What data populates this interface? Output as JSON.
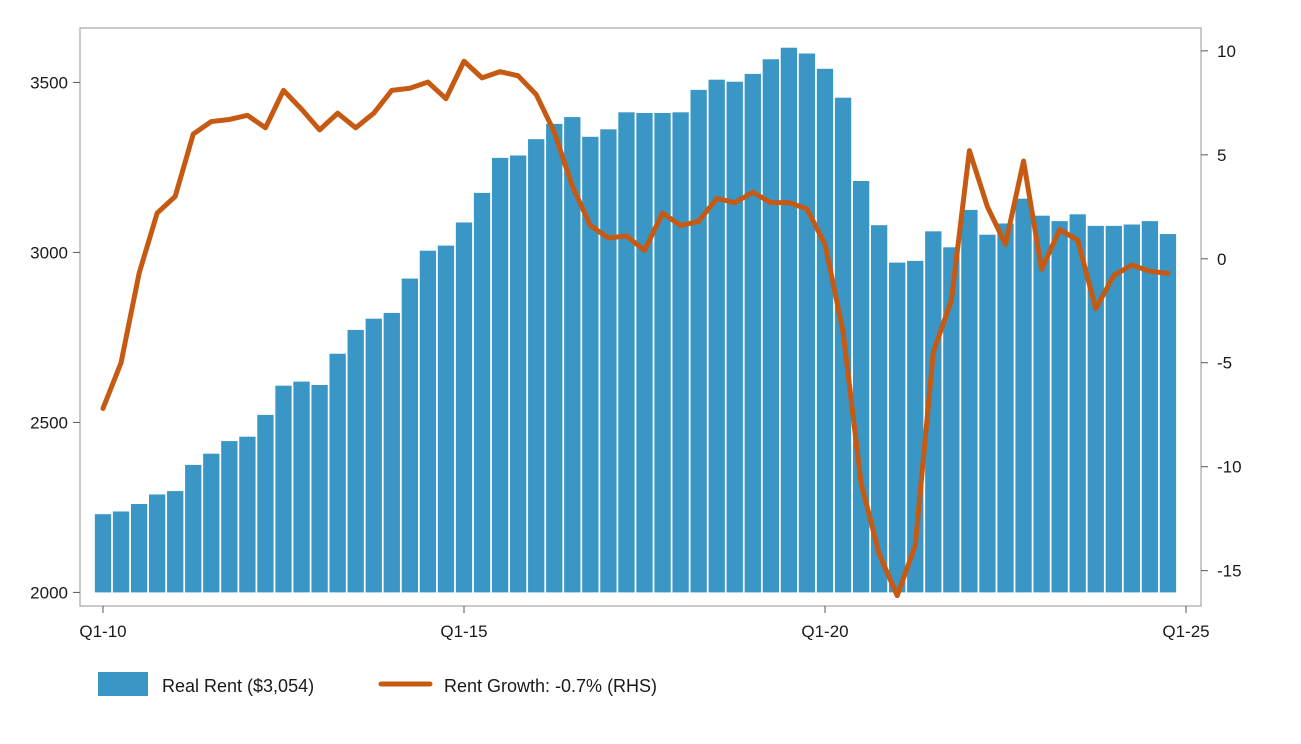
{
  "chart_data": {
    "type": "bar",
    "title": "",
    "xlabel": "",
    "ylabel": "",
    "x_ticks": [
      "Q1-10",
      "Q1-15",
      "Q1-20",
      "Q1-25"
    ],
    "ylim": [
      1960,
      3660
    ],
    "y_ticks": [
      2000,
      2500,
      3000,
      3500
    ],
    "y2lim": [
      -16.7,
      11.1
    ],
    "y2_ticks": [
      -15,
      -10,
      -5,
      0,
      5,
      10
    ],
    "grid": false,
    "legend_position": "bottom-left",
    "colors": {
      "bars": "#3a96c5",
      "line": "#c65a12",
      "axis": "#999999"
    },
    "categories": [
      "Q1-10",
      "Q2-10",
      "Q3-10",
      "Q4-10",
      "Q1-11",
      "Q2-11",
      "Q3-11",
      "Q4-11",
      "Q1-12",
      "Q2-12",
      "Q3-12",
      "Q4-12",
      "Q1-13",
      "Q2-13",
      "Q3-13",
      "Q4-13",
      "Q1-14",
      "Q2-14",
      "Q3-14",
      "Q4-14",
      "Q1-15",
      "Q2-15",
      "Q3-15",
      "Q4-15",
      "Q1-16",
      "Q2-16",
      "Q3-16",
      "Q4-16",
      "Q1-17",
      "Q2-17",
      "Q3-17",
      "Q4-17",
      "Q1-18",
      "Q2-18",
      "Q3-18",
      "Q4-18",
      "Q1-19",
      "Q2-19",
      "Q3-19",
      "Q4-19",
      "Q1-20",
      "Q2-20",
      "Q3-20",
      "Q4-20",
      "Q1-21",
      "Q2-21",
      "Q3-21",
      "Q4-21",
      "Q1-22",
      "Q2-22",
      "Q3-22",
      "Q4-22",
      "Q1-23",
      "Q2-23",
      "Q3-23",
      "Q4-23",
      "Q1-24",
      "Q2-24",
      "Q3-24",
      "Q4-24"
    ],
    "series": [
      {
        "name": "Real Rent ($3,054)",
        "type": "bar",
        "axis": "left",
        "values": [
          2230,
          2238,
          2260,
          2288,
          2298,
          2375,
          2408,
          2445,
          2458,
          2522,
          2608,
          2620,
          2610,
          2702,
          2772,
          2805,
          2822,
          2923,
          3005,
          3020,
          3088,
          3175,
          3278,
          3285,
          3333,
          3378,
          3398,
          3340,
          3362,
          3412,
          3410,
          3410,
          3412,
          3478,
          3508,
          3502,
          3525,
          3568,
          3602,
          3585,
          3540,
          3455,
          3210,
          3080,
          2970,
          2975,
          3062,
          3015,
          3125,
          3052,
          3085,
          3158,
          3108,
          3092,
          3112,
          3078,
          3078,
          3082,
          3092,
          3054
        ]
      },
      {
        "name": "Rent Growth: -0.7% (RHS)",
        "type": "line",
        "axis": "right",
        "values": [
          -7.2,
          -5.0,
          -0.7,
          2.2,
          3.0,
          6.0,
          6.6,
          6.7,
          6.9,
          6.3,
          8.1,
          7.2,
          6.2,
          7.0,
          6.3,
          7.0,
          8.1,
          8.2,
          8.5,
          7.7,
          9.5,
          8.7,
          9.0,
          8.8,
          7.9,
          6.1,
          3.5,
          1.6,
          1.0,
          1.1,
          0.4,
          2.2,
          1.6,
          1.8,
          2.9,
          2.7,
          3.2,
          2.7,
          2.7,
          2.4,
          0.7,
          -3.5,
          -10.8,
          -14.2,
          -16.2,
          -13.8,
          -4.5,
          -2.0,
          5.2,
          2.5,
          0.7,
          4.7,
          -0.5,
          1.4,
          0.9,
          -2.4,
          -0.8,
          -0.3,
          -0.6,
          -0.7
        ]
      }
    ],
    "legend": [
      {
        "label": "Real Rent ($3,054)",
        "kind": "bar"
      },
      {
        "label": "Rent Growth: -0.7% (RHS)",
        "kind": "line"
      }
    ]
  }
}
